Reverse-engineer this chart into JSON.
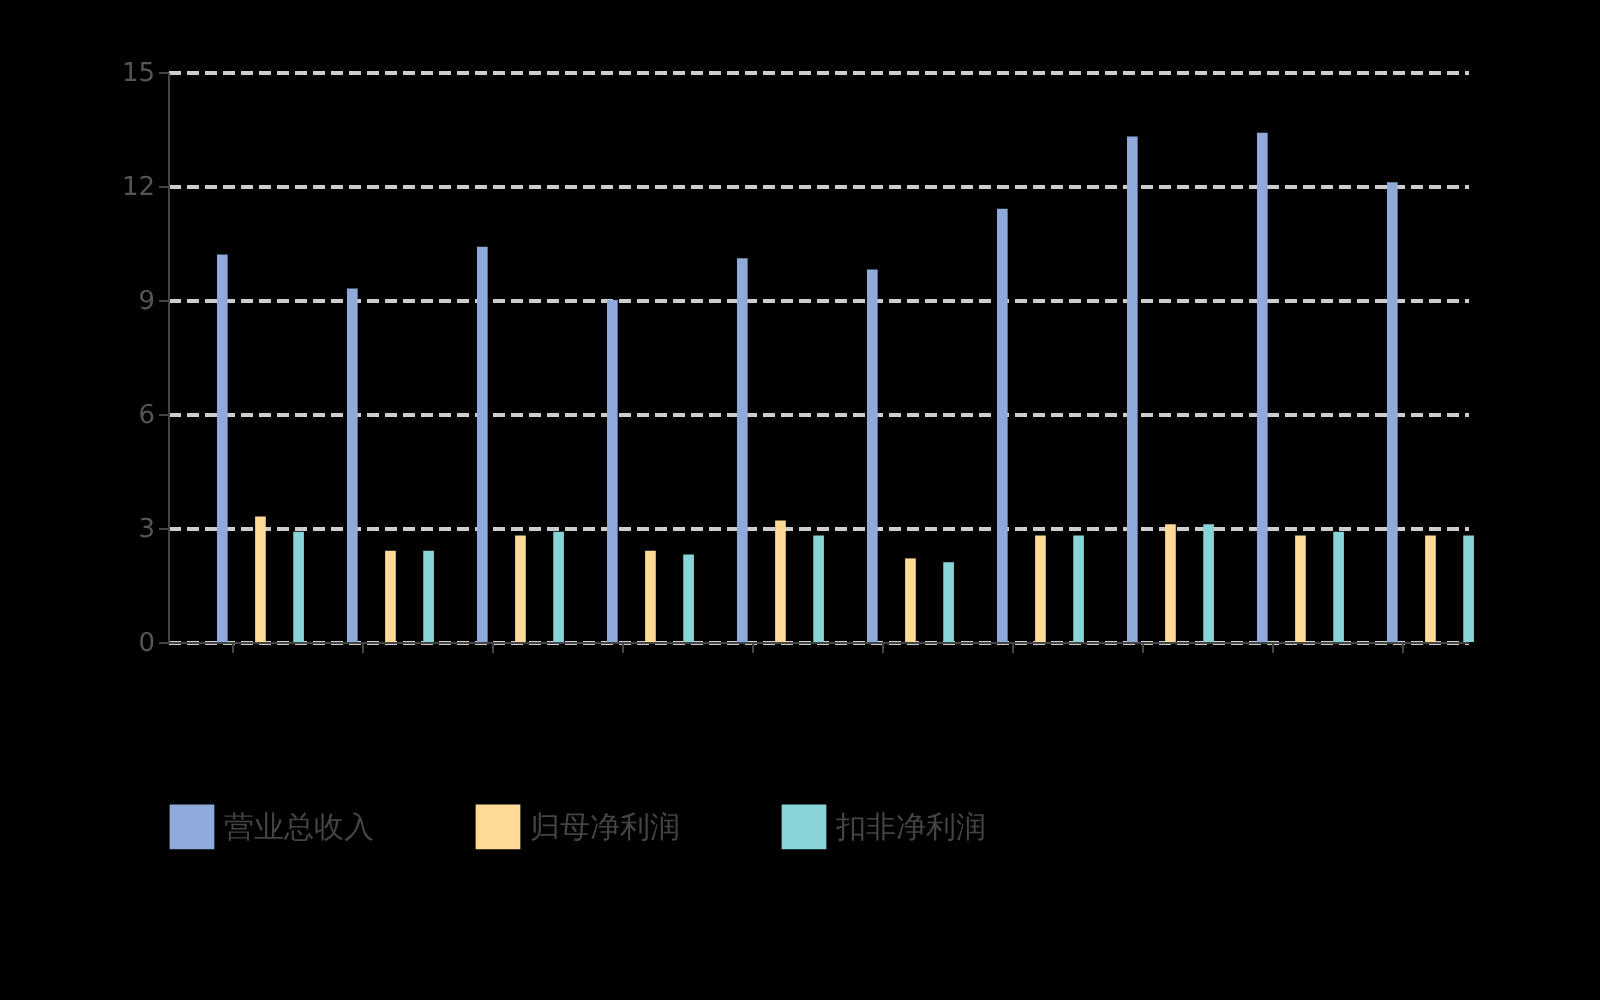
{
  "chart_data": {
    "type": "bar",
    "categories": [
      null,
      null,
      null,
      null,
      null,
      null,
      null,
      null,
      null,
      null
    ],
    "series": [
      {
        "name": "营业总收入",
        "color": "#8eaadb",
        "values": [
          10.2,
          9.3,
          10.4,
          9.0,
          10.1,
          9.8,
          11.4,
          13.3,
          13.4,
          12.1
        ]
      },
      {
        "name": "归母净利润",
        "color": "#ffd996",
        "values": [
          3.3,
          2.4,
          2.8,
          2.4,
          3.2,
          2.2,
          2.8,
          3.1,
          2.8,
          2.8
        ]
      },
      {
        "name": "扣非净利润",
        "color": "#88d4d6",
        "values": [
          2.9,
          2.4,
          2.9,
          2.3,
          2.8,
          2.1,
          2.8,
          3.1,
          2.9,
          2.8
        ]
      }
    ],
    "ylim": [
      0,
      15
    ],
    "yticks": [
      0,
      3,
      6,
      9,
      12,
      15
    ],
    "grid": "y",
    "legend": "bottom"
  }
}
